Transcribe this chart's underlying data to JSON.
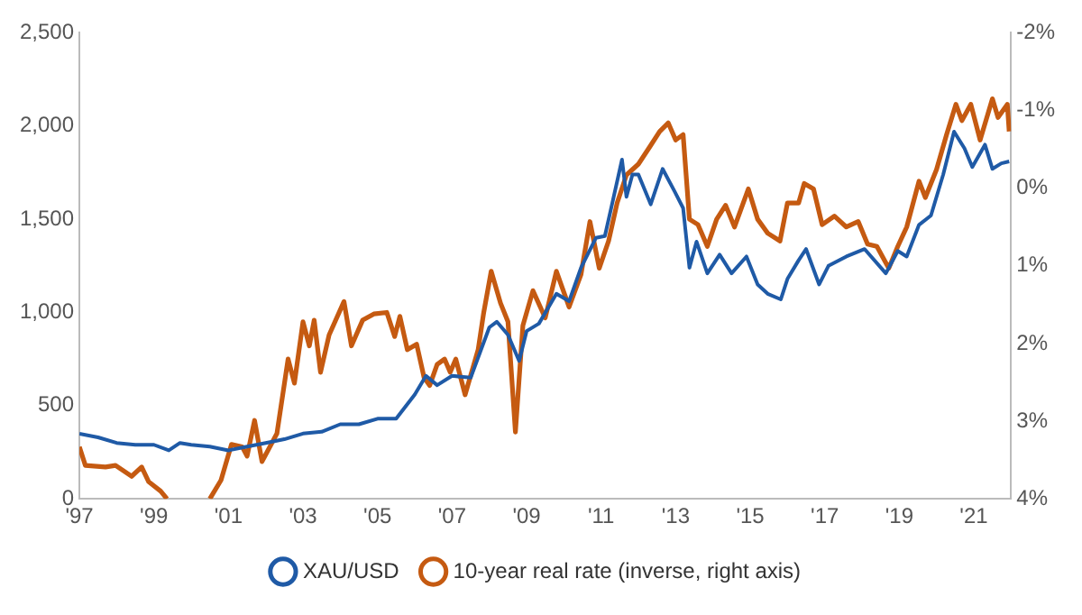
{
  "chart_data": {
    "type": "line",
    "legend": "bottom",
    "grid": false,
    "xlim": [
      1997,
      2022
    ],
    "xticks": [
      {
        "value": 1997,
        "label": "'97"
      },
      {
        "value": 1999,
        "label": "'99"
      },
      {
        "value": 2001,
        "label": "'01"
      },
      {
        "value": 2003,
        "label": "'03"
      },
      {
        "value": 2005,
        "label": "'05"
      },
      {
        "value": 2007,
        "label": "'07"
      },
      {
        "value": 2009,
        "label": "'09"
      },
      {
        "value": 2011,
        "label": "'11"
      },
      {
        "value": 2013,
        "label": "'13"
      },
      {
        "value": 2015,
        "label": "'15"
      },
      {
        "value": 2017,
        "label": "'17"
      },
      {
        "value": 2019,
        "label": "'19"
      },
      {
        "value": 2021,
        "label": "'21"
      }
    ],
    "ylim": [
      0,
      2500
    ],
    "yticks": [
      {
        "value": 0,
        "label": "0"
      },
      {
        "value": 500,
        "label": "500"
      },
      {
        "value": 1000,
        "label": "1,000"
      },
      {
        "value": 1500,
        "label": "1,500"
      },
      {
        "value": 2000,
        "label": "2,000"
      },
      {
        "value": 2500,
        "label": "2,500"
      }
    ],
    "y2lim": [
      4,
      -2
    ],
    "y2ticks": [
      {
        "value": -2,
        "label": "-2%"
      },
      {
        "value": -1,
        "label": "-1%"
      },
      {
        "value": 0,
        "label": "0%"
      },
      {
        "value": 1,
        "label": "1%"
      },
      {
        "value": 2,
        "label": "2%"
      },
      {
        "value": 3,
        "label": "3%"
      },
      {
        "value": 4,
        "label": "4%"
      }
    ],
    "series": [
      {
        "name": "XAU/USD",
        "color": "#1f5aa6",
        "x": [
          1997,
          1997.5,
          1998,
          1998.5,
          1999,
          1999.4,
          1999.7,
          2000,
          2000.5,
          2001,
          2001.5,
          2002,
          2002.5,
          2003,
          2003.5,
          2004,
          2004.5,
          2005,
          2005.5,
          2006,
          2006.3,
          2006.6,
          2007,
          2007.5,
          2008,
          2008.2,
          2008.5,
          2008.8,
          2009,
          2009.33,
          2009.8,
          2010.14,
          2010.46,
          2010.86,
          2011.1,
          2011.27,
          2011.56,
          2011.68,
          2011.84,
          2012,
          2012.33,
          2012.65,
          2012.97,
          2013.2,
          2013.37,
          2013.56,
          2013.85,
          2014.18,
          2014.5,
          2014.9,
          2015.2,
          2015.47,
          2015.82,
          2016,
          2016.3,
          2016.5,
          2016.85,
          2017.1,
          2017.58,
          2018.07,
          2018.64,
          2018.96,
          2019.2,
          2019.53,
          2019.85,
          2020.18,
          2020.47,
          2020.75,
          2020.96,
          2021.3,
          2021.5,
          2021.74,
          2021.95
        ],
        "values": [
          350,
          330,
          300,
          290,
          290,
          260,
          300,
          290,
          280,
          260,
          280,
          300,
          320,
          350,
          360,
          400,
          400,
          430,
          430,
          560,
          660,
          610,
          660,
          650,
          920,
          950,
          880,
          740,
          900,
          940,
          1100,
          1060,
          1240,
          1400,
          1410,
          1560,
          1820,
          1620,
          1740,
          1740,
          1580,
          1770,
          1650,
          1560,
          1240,
          1380,
          1210,
          1310,
          1210,
          1300,
          1150,
          1100,
          1070,
          1180,
          1280,
          1340,
          1150,
          1250,
          1300,
          1340,
          1210,
          1330,
          1300,
          1470,
          1520,
          1740,
          1970,
          1880,
          1780,
          1900,
          1770,
          1800,
          1810
        ]
      },
      {
        "name": "10-year real rate (inverse, right axis)",
        "color": "#c55a11",
        "axis": "y2",
        "x": [
          1997,
          1997.16,
          1997.7,
          1997.97,
          1998.4,
          1998.67,
          1998.86,
          1999.18,
          1999.35,
          2000,
          2000.5,
          2000.8,
          2001.08,
          2001.37,
          2001.5,
          2001.7,
          2001.9,
          2002.3,
          2002.6,
          2002.77,
          2003,
          2003.17,
          2003.3,
          2003.47,
          2003.7,
          2004.1,
          2004.3,
          2004.6,
          2004.9,
          2005.25,
          2005.46,
          2005.6,
          2005.8,
          2006.05,
          2006.25,
          2006.4,
          2006.6,
          2006.8,
          2006.95,
          2007.1,
          2007.35,
          2007.7,
          2007.85,
          2008.05,
          2008.3,
          2008.5,
          2008.7,
          2008.9,
          2009.17,
          2009.5,
          2009.8,
          2010.14,
          2010.46,
          2010.7,
          2010.95,
          2011.2,
          2011.43,
          2011.68,
          2012,
          2012.33,
          2012.57,
          2012.8,
          2013,
          2013.2,
          2013.37,
          2013.6,
          2013.85,
          2014.1,
          2014.34,
          2014.58,
          2014.95,
          2015.2,
          2015.47,
          2015.8,
          2016,
          2016.3,
          2016.45,
          2016.7,
          2016.93,
          2017.26,
          2017.58,
          2017.9,
          2018.15,
          2018.4,
          2018.72,
          2018.96,
          2019.2,
          2019.53,
          2019.7,
          2020,
          2020.27,
          2020.52,
          2020.68,
          2020.92,
          2021.17,
          2021.5,
          2021.65,
          2021.9,
          2021.95
        ],
        "values": [
          3.33,
          3.57,
          3.59,
          3.57,
          3.71,
          3.59,
          3.78,
          3.9,
          4,
          null,
          4,
          3.76,
          3.3,
          3.33,
          3.45,
          2.99,
          3.52,
          3.16,
          2.2,
          2.51,
          1.72,
          2.03,
          1.7,
          2.37,
          1.89,
          1.46,
          2.03,
          1.7,
          1.62,
          1.6,
          1.91,
          1.65,
          2.08,
          2.01,
          2.44,
          2.54,
          2.27,
          2.2,
          2.37,
          2.2,
          2.66,
          2.08,
          1.6,
          1.07,
          1.48,
          1.72,
          3.14,
          1.77,
          1.32,
          1.67,
          1.07,
          1.53,
          1.11,
          0.43,
          1.03,
          0.68,
          0.19,
          -0.17,
          -0.31,
          -0.55,
          -0.73,
          -0.84,
          -0.62,
          -0.69,
          0.4,
          0.47,
          0.75,
          0.4,
          0.22,
          0.5,
          0.01,
          0.4,
          0.58,
          0.68,
          0.19,
          0.19,
          -0.06,
          0.01,
          0.47,
          0.36,
          0.5,
          0.43,
          0.72,
          0.75,
          1.03,
          0.75,
          0.5,
          -0.09,
          0.12,
          -0.24,
          -0.69,
          -1.08,
          -0.87,
          -1.08,
          -0.62,
          -1.15,
          -0.91,
          -1.08,
          -0.73
        ]
      }
    ]
  }
}
